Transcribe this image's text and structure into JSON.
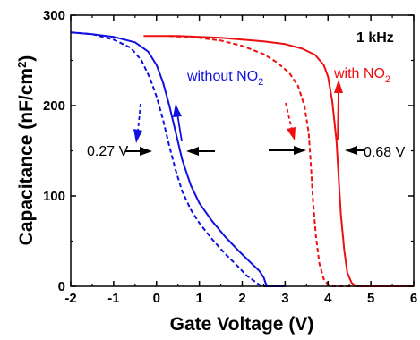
{
  "chart_data": {
    "type": "line",
    "title": "",
    "xlabel": "Gate Voltage (V)",
    "ylabel_main": "Capacitance (nF/cm",
    "ylabel_sup": "2",
    "ylabel_tail": ")",
    "xlim": [
      -2,
      6
    ],
    "ylim": [
      0,
      300
    ],
    "xticks": [
      -2,
      -1,
      0,
      1,
      2,
      3,
      4,
      5,
      6
    ],
    "yticks": [
      0,
      100,
      200,
      300
    ],
    "xtick_labels": [
      "-2",
      "-1",
      "0",
      "1",
      "2",
      "3",
      "4",
      "5",
      "6"
    ],
    "ytick_labels": [
      "0",
      "100",
      "200",
      "300"
    ],
    "grid": false,
    "series": [
      {
        "name": "without NO2 forward",
        "color": "#1010e0",
        "dash": "solid",
        "points": [
          [
            -2,
            281
          ],
          [
            -1.5,
            279
          ],
          [
            -1.0,
            276
          ],
          [
            -0.5,
            270
          ],
          [
            -0.2,
            260
          ],
          [
            0.0,
            245
          ],
          [
            0.15,
            226
          ],
          [
            0.3,
            200
          ],
          [
            0.45,
            170
          ],
          [
            0.6,
            140
          ],
          [
            0.8,
            112
          ],
          [
            1.0,
            92
          ],
          [
            1.3,
            72
          ],
          [
            1.6,
            55
          ],
          [
            1.9,
            40
          ],
          [
            2.2,
            26
          ],
          [
            2.4,
            17
          ],
          [
            2.5,
            10
          ],
          [
            2.55,
            3
          ],
          [
            2.6,
            0
          ],
          [
            3.0,
            0
          ]
        ]
      },
      {
        "name": "without NO2 reverse",
        "color": "#1010e0",
        "dash": "dashed",
        "points": [
          [
            -2,
            281
          ],
          [
            -1.5,
            279
          ],
          [
            -1.0,
            273
          ],
          [
            -0.6,
            264
          ],
          [
            -0.35,
            250
          ],
          [
            -0.15,
            230
          ],
          [
            0.0,
            210
          ],
          [
            0.15,
            185
          ],
          [
            0.3,
            155
          ],
          [
            0.45,
            128
          ],
          [
            0.6,
            105
          ],
          [
            0.8,
            85
          ],
          [
            1.0,
            70
          ],
          [
            1.3,
            52
          ],
          [
            1.6,
            36
          ],
          [
            1.9,
            22
          ],
          [
            2.1,
            12
          ],
          [
            2.3,
            5
          ],
          [
            2.45,
            0
          ],
          [
            2.8,
            0
          ]
        ]
      },
      {
        "name": "with NO2 forward",
        "color": "#ee1010",
        "dash": "solid",
        "points": [
          [
            -0.3,
            277
          ],
          [
            0.5,
            277
          ],
          [
            1.0,
            276
          ],
          [
            1.5,
            275
          ],
          [
            2.0,
            273
          ],
          [
            2.5,
            271
          ],
          [
            3.0,
            268
          ],
          [
            3.4,
            263
          ],
          [
            3.7,
            256
          ],
          [
            3.9,
            245
          ],
          [
            4.0,
            232
          ],
          [
            4.1,
            205
          ],
          [
            4.2,
            160
          ],
          [
            4.25,
            120
          ],
          [
            4.3,
            80
          ],
          [
            4.38,
            40
          ],
          [
            4.45,
            15
          ],
          [
            4.55,
            4
          ],
          [
            4.65,
            0
          ],
          [
            6.0,
            0
          ]
        ]
      },
      {
        "name": "with NO2 reverse",
        "color": "#ee1010",
        "dash": "dashed",
        "points": [
          [
            0.3,
            277
          ],
          [
            1.0,
            275
          ],
          [
            1.5,
            272
          ],
          [
            2.0,
            266
          ],
          [
            2.5,
            257
          ],
          [
            2.8,
            248
          ],
          [
            3.1,
            236
          ],
          [
            3.3,
            222
          ],
          [
            3.45,
            200
          ],
          [
            3.55,
            170
          ],
          [
            3.6,
            135
          ],
          [
            3.65,
            95
          ],
          [
            3.72,
            55
          ],
          [
            3.8,
            25
          ],
          [
            3.9,
            8
          ],
          [
            4.0,
            2
          ],
          [
            4.1,
            0
          ],
          [
            4.6,
            0
          ]
        ]
      }
    ],
    "annotations": {
      "freq": "1 kHz",
      "without_main": "without NO",
      "without_sub": "2",
      "with_main": "with NO",
      "with_sub": "2",
      "shift_without": "0.27 V",
      "shift_with": "0.68 V"
    },
    "colors": {
      "blue": "#1010e0",
      "red": "#ee1010",
      "black": "#000000"
    }
  }
}
